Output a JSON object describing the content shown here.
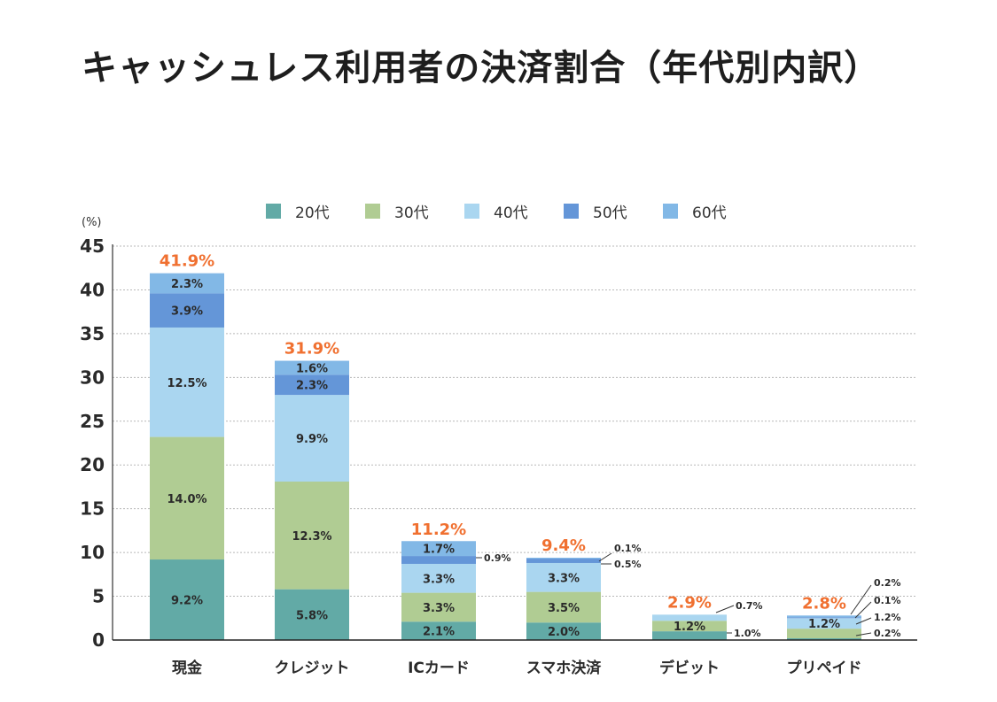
{
  "title": "キャッシュレス利用者の決済割合（年代別内訳）",
  "chart_data": {
    "type": "bar",
    "stacked": true,
    "title": "キャッシュレス利用者の決済割合（年代別内訳）",
    "xlabel": "",
    "ylabel": "(%)",
    "ylim": [
      0,
      45
    ],
    "yticks": [
      0,
      5,
      10,
      15,
      20,
      25,
      30,
      35,
      40,
      45
    ],
    "grid": true,
    "legend_position": "top",
    "categories": [
      "現金",
      "クレジット",
      "ICカード",
      "スマホ決済",
      "デビット",
      "プリペイド"
    ],
    "series": [
      {
        "name": "20代",
        "color": "#62aaa6",
        "values": [
          9.2,
          5.8,
          2.1,
          2.0,
          1.0,
          0.2
        ]
      },
      {
        "name": "30代",
        "color": "#b0cc93",
        "values": [
          14.0,
          12.3,
          3.3,
          3.5,
          1.2,
          1.1
        ]
      },
      {
        "name": "40代",
        "color": "#aad6f0",
        "values": [
          12.5,
          9.9,
          3.3,
          3.3,
          0.7,
          1.2
        ]
      },
      {
        "name": "50代",
        "color": "#6496d8",
        "values": [
          3.9,
          2.3,
          0.9,
          0.5,
          0.0,
          0.1
        ]
      },
      {
        "name": "60代",
        "color": "#82b8e6",
        "values": [
          2.3,
          1.6,
          1.7,
          0.1,
          0.0,
          0.2
        ]
      }
    ],
    "totals": [
      41.9,
      31.9,
      11.2,
      9.4,
      2.9,
      2.8
    ],
    "total_labels": [
      "41.9%",
      "31.9%",
      "11.2%",
      "9.4%",
      "2.9%",
      "2.8%"
    ],
    "total_label_color": "#f07030",
    "segment_labels": [
      [
        "9.2%",
        "14.0%",
        "12.5%",
        "3.9%",
        "2.3%"
      ],
      [
        "5.8%",
        "12.3%",
        "9.9%",
        "2.3%",
        "1.6%"
      ],
      [
        "2.1%",
        "3.3%",
        "3.3%",
        "0.9%",
        "1.7%"
      ],
      [
        "2.0%",
        "3.5%",
        "3.3%",
        "0.5%",
        "0.1%"
      ],
      [
        "1.0%",
        "1.2%",
        "0.7%",
        "",
        ""
      ],
      [
        "0.2%",
        "1.1%",
        "1.2%",
        "0.1%",
        "0.2%"
      ]
    ],
    "unit_label": "(%)"
  }
}
